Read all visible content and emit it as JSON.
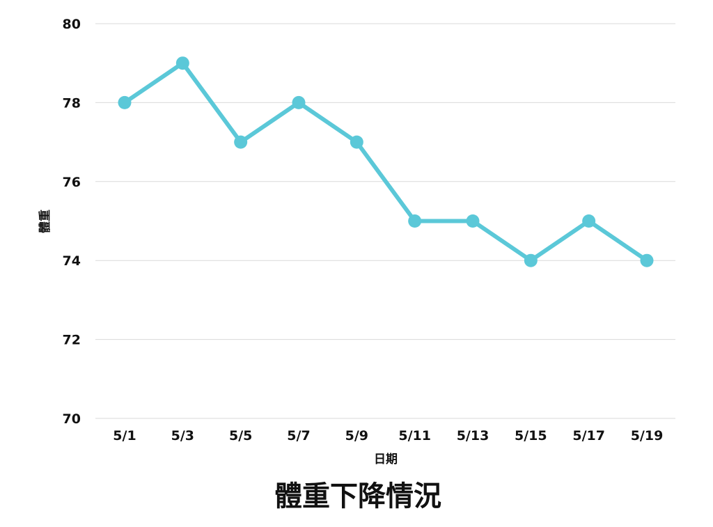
{
  "chart_data": {
    "type": "line",
    "title": "體重下降情況",
    "xlabel": "日期",
    "ylabel": "體重",
    "categories": [
      "5/1",
      "5/3",
      "5/5",
      "5/7",
      "5/9",
      "5/11",
      "5/13",
      "5/15",
      "5/17",
      "5/19"
    ],
    "series": [
      {
        "values": [
          78,
          79,
          77,
          78,
          77,
          75,
          75,
          74,
          75,
          74
        ]
      }
    ],
    "ylim": [
      70,
      80
    ],
    "yticks": [
      70,
      72,
      74,
      76,
      78,
      80
    ],
    "grid": true,
    "line_color": "#5bc8d8"
  }
}
